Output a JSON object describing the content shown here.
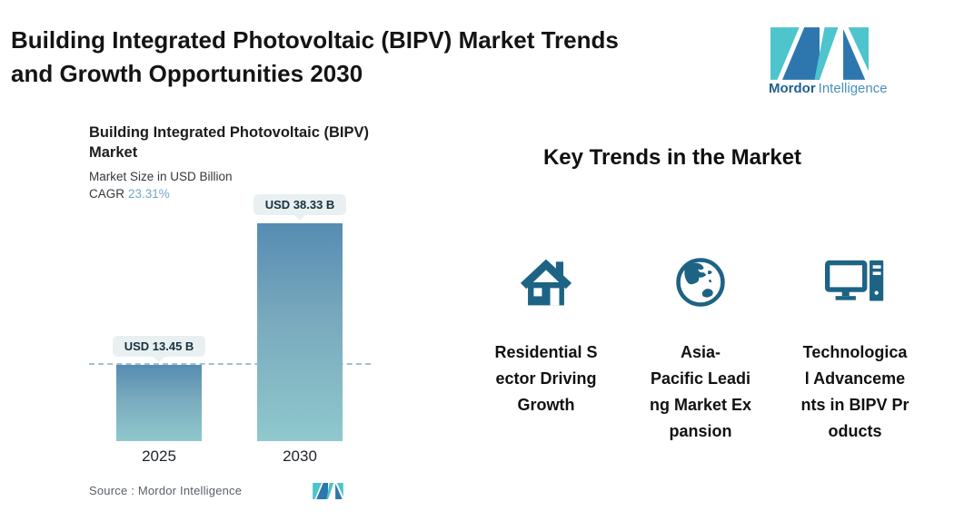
{
  "header": {
    "title": "Building Integrated Photovoltaic (BIPV) Market Trends\nand Growth Opportunities 2030"
  },
  "brand": {
    "name_bold": "Mordor",
    "name_light": "Intelligence",
    "teal": "#4ec4cc",
    "blue": "#2e77ae",
    "wordmark_bold_color": "#1e5f93",
    "wordmark_light_color": "#4a90bc"
  },
  "chart_data": {
    "type": "bar",
    "title": "Building Integrated Photovoltaic (BIPV)\nMarket",
    "subtitle": "Market Size in USD Billion",
    "cagr_label": "CAGR",
    "cagr_value": "23.31%",
    "cagr_value_color": "#74a9cb",
    "categories": [
      "2025",
      "2030"
    ],
    "values": [
      13.45,
      38.33
    ],
    "value_labels": [
      "USD 13.45 B",
      "USD 38.33 B"
    ],
    "unit": "USD Billion",
    "ylim": [
      0,
      38.33
    ],
    "grid": false,
    "legend": "none",
    "dashed_reference_value": 13.45,
    "bar_gradient_top": "#578cb3",
    "bar_gradient_bottom": "#8fc8cd",
    "dashed_line_color": "#a5bfd3",
    "label_bubble_bg": "#e8f0f2",
    "source_label": "Source :  Mordor Intelligence"
  },
  "trends": {
    "heading": "Key Trends in the Market",
    "icon_color": "#1d6384",
    "items": [
      {
        "icon": "house-icon",
        "label": "Residential S\nector Driving\nGrowth"
      },
      {
        "icon": "globe-asia-icon",
        "label": "Asia-\nPacific Leadi\nng Market Ex\npansion"
      },
      {
        "icon": "desktop-computer-icon",
        "label": "Technologica\nl Advanceme\nnts in BIPV Pr\noducts"
      }
    ]
  }
}
